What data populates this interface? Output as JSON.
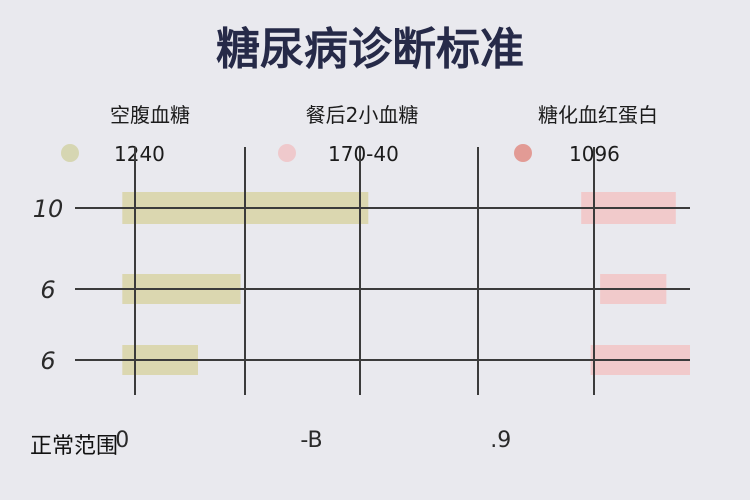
{
  "chart_data": {
    "type": "bar",
    "title": "糖尿病诊断标准",
    "column_headers": [
      "空腹血糖",
      "餐后2小血糖",
      "糖化血红蛋白"
    ],
    "legend": [
      {
        "value_text": "1240",
        "color": "#d6d6b2"
      },
      {
        "value_text": "170-40",
        "color": "#efc9cc"
      },
      {
        "value_text": "1096",
        "color": "#e29b95"
      }
    ],
    "categories": [
      "10",
      "6",
      "6"
    ],
    "series": [
      {
        "values": [
          [
            0,
            5.2
          ],
          [
            0,
            2.5
          ],
          [
            0,
            1.6
          ]
        ],
        "color": "#d8d4a4"
      },
      {
        "values": [
          [
            9.7,
            11.7
          ],
          [
            10.1,
            11.5
          ],
          [
            9.9,
            12.0
          ]
        ],
        "color": "#f2c4c4"
      }
    ],
    "x_ticks": [
      "0",
      "-B",
      ".9"
    ],
    "x_tick_values": [
      0,
      4,
      8
    ],
    "xlim": [
      -1,
      12
    ],
    "grid": true,
    "footer_label": "正常范围"
  }
}
